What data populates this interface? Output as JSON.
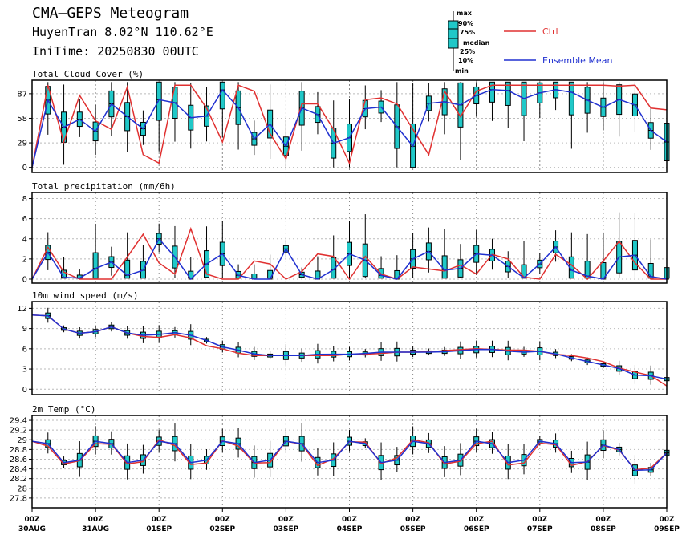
{
  "header": {
    "title": "CMA—GEPS Meteogram",
    "location": "HuyenTran 8.02°N 110.62°E",
    "init_time": "IniTime: 20250830 00UTC"
  },
  "legend": {
    "box_labels": [
      "max",
      "90%",
      "75%",
      "median",
      "25%",
      "10%",
      "min"
    ],
    "ctrl_label": "Ctrl",
    "mean_label": "Ensemble Mean",
    "ctrl_color": "#e03030",
    "mean_color": "#2030d0",
    "box_color": "#20c8c8"
  },
  "chart_data": [
    {
      "type": "box",
      "title": "Total Cloud Cover (%)",
      "ylim": [
        -6,
        103
      ],
      "yticks": [
        0,
        29,
        58,
        87
      ],
      "x_tick_labels": [
        "00Z 30AUG",
        "00Z 31AUG",
        "00Z 01SEP",
        "00Z 02SEP",
        "00Z 03SEP",
        "00Z 04SEP",
        "00Z 05SEP",
        "00Z 06SEP",
        "00Z 07SEP",
        "00Z 08SEP",
        "00Z 09SEP"
      ],
      "ctrl": [
        0,
        97,
        30,
        85,
        55,
        45,
        95,
        15,
        5,
        97,
        97,
        70,
        30,
        97,
        90,
        40,
        10,
        75,
        75,
        45,
        5,
        80,
        82,
        75,
        45,
        15,
        90,
        60,
        90,
        97,
        97,
        97,
        97,
        97,
        97,
        97,
        97,
        96,
        97,
        70,
        68
      ],
      "mean": [
        0,
        85,
        40,
        70,
        35,
        50,
        90,
        50,
        45,
        80,
        78,
        65,
        40,
        95,
        88,
        60,
        25,
        55,
        25,
        70,
        70,
        40,
        10,
        60,
        75,
        70,
        45,
        25,
        75,
        80,
        70,
        80,
        90,
        93,
        90,
        80,
        88,
        92,
        90,
        85,
        70,
        72,
        85,
        70,
        40,
        30
      ],
      "boxes": [
        {
          "min": null,
          "p10": null,
          "p25": null,
          "med": null,
          "p75": null,
          "p90": null,
          "max": null
        }
      ]
    },
    {
      "type": "box",
      "title": "Total precipitation (mm/6h)",
      "ylim": [
        -0.4,
        8.6
      ],
      "yticks": [
        0,
        2,
        4,
        6,
        8
      ],
      "ctrl": [
        0,
        3.5,
        0,
        0,
        0,
        0,
        5.5,
        2,
        0,
        5,
        0,
        0,
        0,
        3,
        0,
        0,
        2.5,
        2.5,
        0,
        2.5,
        0,
        0,
        2,
        0,
        2,
        0,
        2.5,
        2,
        0,
        0,
        3.5,
        0,
        0,
        4.5,
        2,
        0,
        0
      ],
      "mean": [
        0,
        3,
        0.2,
        0.1,
        0.1,
        2,
        1.5,
        0,
        1,
        4,
        2.5,
        0,
        0,
        4,
        1,
        0,
        0,
        0,
        3,
        0.5,
        0,
        0,
        2.5,
        2.5,
        1.5,
        0,
        0,
        2,
        3,
        1,
        0.5,
        2,
        3,
        2,
        1,
        0,
        1.5,
        3.5,
        1,
        0.5,
        0,
        0,
        3.5,
        2,
        0,
        0
      ],
      "boxes": []
    },
    {
      "type": "box",
      "title": "10m wind speed (m/s)",
      "ylim": [
        -0.8,
        13
      ],
      "yticks": [
        0,
        3,
        6,
        9,
        12
      ],
      "ctrl": [
        11,
        11,
        9,
        8.3,
        8.3,
        9.5,
        8.5,
        8,
        7.5,
        8,
        8.2,
        7,
        6,
        6,
        5,
        5,
        5,
        5,
        5,
        5,
        5,
        5.2,
        5.2,
        5.3,
        5.5,
        5.5,
        5.5,
        5.7,
        5.8,
        6,
        6,
        5.8,
        5.8,
        5.8,
        5.5,
        5,
        5,
        4.5,
        4,
        3,
        2.5,
        2,
        0.5
      ],
      "mean": [
        11,
        11,
        9,
        8.3,
        8.3,
        9.5,
        8.5,
        8,
        8,
        8.3,
        8.5,
        7.5,
        7,
        5.8,
        5.8,
        5,
        5,
        5,
        5,
        5.2,
        5.2,
        5.2,
        5.3,
        5.5,
        5.5,
        5.5,
        5.5,
        5.5,
        5.7,
        5.8,
        6,
        5.8,
        5.5,
        5.5,
        5.7,
        5,
        4.5,
        4,
        3.5,
        3,
        2,
        2,
        1.5
      ],
      "boxes": []
    },
    {
      "type": "box",
      "title": "2m Temp (°C)",
      "ylim": [
        27.6,
        29.5
      ],
      "yticks": [
        27.8,
        28,
        28.2,
        28.4,
        28.6,
        28.8,
        29,
        29.2,
        29.4
      ],
      "ctrl": [],
      "mean": [],
      "boxes": []
    }
  ]
}
